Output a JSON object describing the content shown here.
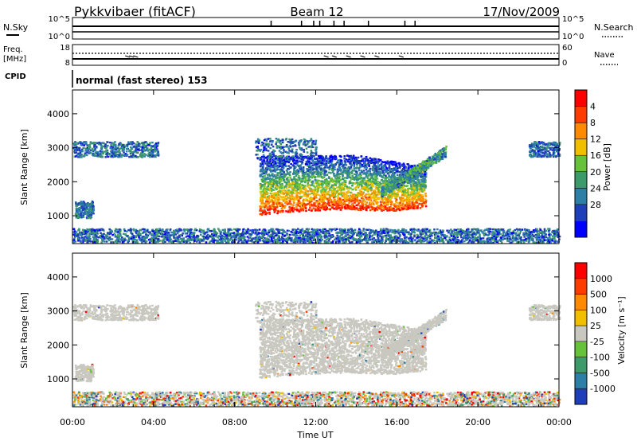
{
  "header": {
    "station": "Pykkvibaer (fitACF)",
    "beam": "Beam 12",
    "date": "17/Nov/2009"
  },
  "summary_panels": {
    "nsky_label": "N.Sky",
    "nsky_ticks": [
      "10^5",
      "10^0"
    ],
    "nsearch_label": "N.Search",
    "nsearch_ticks": [
      "10^5",
      "10^0"
    ],
    "freq_label": "Freq.",
    "freq_unit": "[MHz]",
    "freq_ticks": [
      "18",
      "8"
    ],
    "nave_label": "Nave",
    "nave_ticks": [
      "60",
      "0"
    ],
    "cpid_label": "CPID",
    "cpid_text": "normal (fast stereo) 153"
  },
  "chart_data": [
    {
      "type": "heatmap",
      "title": "",
      "ylabel": "Slant Range [km]",
      "yticks": [
        "1000",
        "2000",
        "3000",
        "4000"
      ],
      "ylim": [
        180,
        4700
      ],
      "colorbar": {
        "label": "Power [dB]",
        "ticks": [
          "4",
          "8",
          "12",
          "16",
          "20",
          "24",
          "28"
        ],
        "colors": [
          "#0000ff",
          "#1f3fb8",
          "#2e7fa8",
          "#3d9a6b",
          "#66c23a",
          "#f0c000",
          "#ff8a00",
          "#ff3c00",
          "#ff0000"
        ]
      }
    },
    {
      "type": "heatmap",
      "title": "",
      "ylabel": "Slant Range [km]",
      "yticks": [
        "1000",
        "2000",
        "3000",
        "4000"
      ],
      "ylim": [
        180,
        4700
      ],
      "colorbar": {
        "label": "Velocity [m s⁻¹]",
        "ticks": [
          "1000",
          "500",
          "100",
          "25",
          "-25",
          "-100",
          "-500",
          "-1000"
        ],
        "colors": [
          "#1f3fb8",
          "#2e7fa8",
          "#3d9a6b",
          "#66c23a",
          "#c8c8c0",
          "#f0c000",
          "#ff8a00",
          "#ff3c00",
          "#ff0000"
        ]
      }
    }
  ],
  "x_axis": {
    "label": "Time UT",
    "ticks": [
      "00:00",
      "04:00",
      "08:00",
      "12:00",
      "16:00",
      "20:00",
      "00:00"
    ],
    "range_hours": [
      0,
      24
    ]
  }
}
